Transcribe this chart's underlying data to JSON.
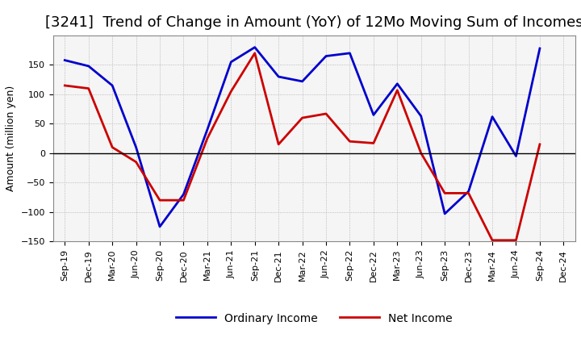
{
  "title": "[3241]  Trend of Change in Amount (YoY) of 12Mo Moving Sum of Incomes",
  "ylabel": "Amount (million yen)",
  "xlabels": [
    "Sep-19",
    "Dec-19",
    "Mar-20",
    "Jun-20",
    "Sep-20",
    "Dec-20",
    "Mar-21",
    "Jun-21",
    "Sep-21",
    "Dec-21",
    "Mar-22",
    "Jun-22",
    "Sep-22",
    "Dec-22",
    "Mar-23",
    "Jun-23",
    "Sep-23",
    "Dec-23",
    "Mar-24",
    "Jun-24",
    "Sep-24",
    "Dec-24"
  ],
  "ordinary_income": [
    158,
    148,
    115,
    10,
    -125,
    -70,
    40,
    155,
    180,
    130,
    122,
    165,
    170,
    65,
    118,
    63,
    -103,
    -65,
    62,
    -5,
    178,
    null
  ],
  "net_income": [
    115,
    110,
    10,
    -15,
    -80,
    -80,
    25,
    105,
    170,
    15,
    60,
    67,
    20,
    17,
    107,
    0,
    -68,
    -68,
    -148,
    -148,
    15,
    null
  ],
  "ordinary_income_color": "#0000cc",
  "net_income_color": "#cc0000",
  "ylim": [
    -150,
    200
  ],
  "yticks": [
    -150,
    -100,
    -50,
    0,
    50,
    100,
    150
  ],
  "background_color": "#ffffff",
  "plot_bg_color": "#f5f5f5",
  "grid_color": "#999999",
  "grid_linestyle": "dotted",
  "legend_labels": [
    "Ordinary Income",
    "Net Income"
  ],
  "title_fontsize": 13,
  "axis_fontsize": 9,
  "tick_fontsize": 8,
  "line_width": 2.0,
  "legend_fontsize": 10
}
